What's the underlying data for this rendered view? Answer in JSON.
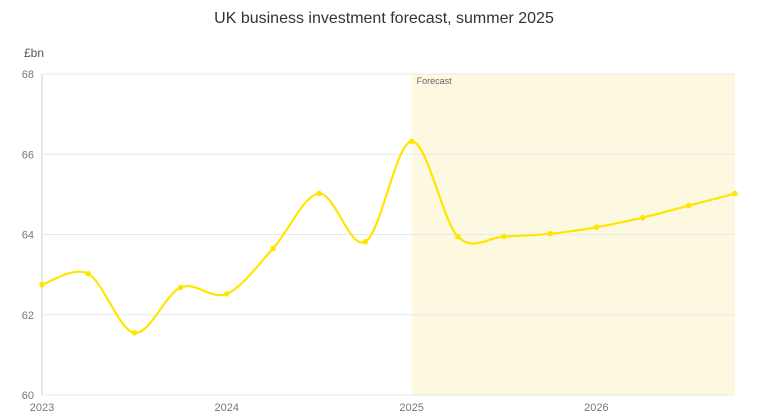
{
  "chart_data": {
    "type": "line",
    "title": "UK business investment forecast, summer 2025",
    "ylabel": "£bn",
    "xlabel": "",
    "ylim": [
      60,
      68
    ],
    "yticks": [
      "60",
      "62",
      "64",
      "66",
      "68"
    ],
    "xticks": [
      "2023",
      "2024",
      "2025",
      "2026"
    ],
    "forecast_label": "Forecast",
    "forecast_start": "2025 Q1",
    "x": [
      "2023 Q1",
      "2023 Q2",
      "2023 Q3",
      "2023 Q4",
      "2024 Q1",
      "2024 Q2",
      "2024 Q3",
      "2024 Q4",
      "2025 Q1",
      "2025 Q2",
      "2025 Q3",
      "2025 Q4",
      "2026 Q1",
      "2026 Q2",
      "2026 Q3",
      "2026 Q4"
    ],
    "series": [
      {
        "values": [
          62.75,
          63.02,
          61.55,
          62.68,
          62.52,
          63.65,
          65.02,
          63.82,
          66.32,
          63.95,
          63.95,
          64.02,
          64.18,
          64.42,
          64.72,
          65.02
        ]
      }
    ],
    "grid": true,
    "colors": {
      "line": "#ffe600",
      "forecast_band": "#fcf9e0",
      "grid": "#e8e8e8",
      "axis": "#cccccc",
      "tick_text": "#777777"
    }
  }
}
